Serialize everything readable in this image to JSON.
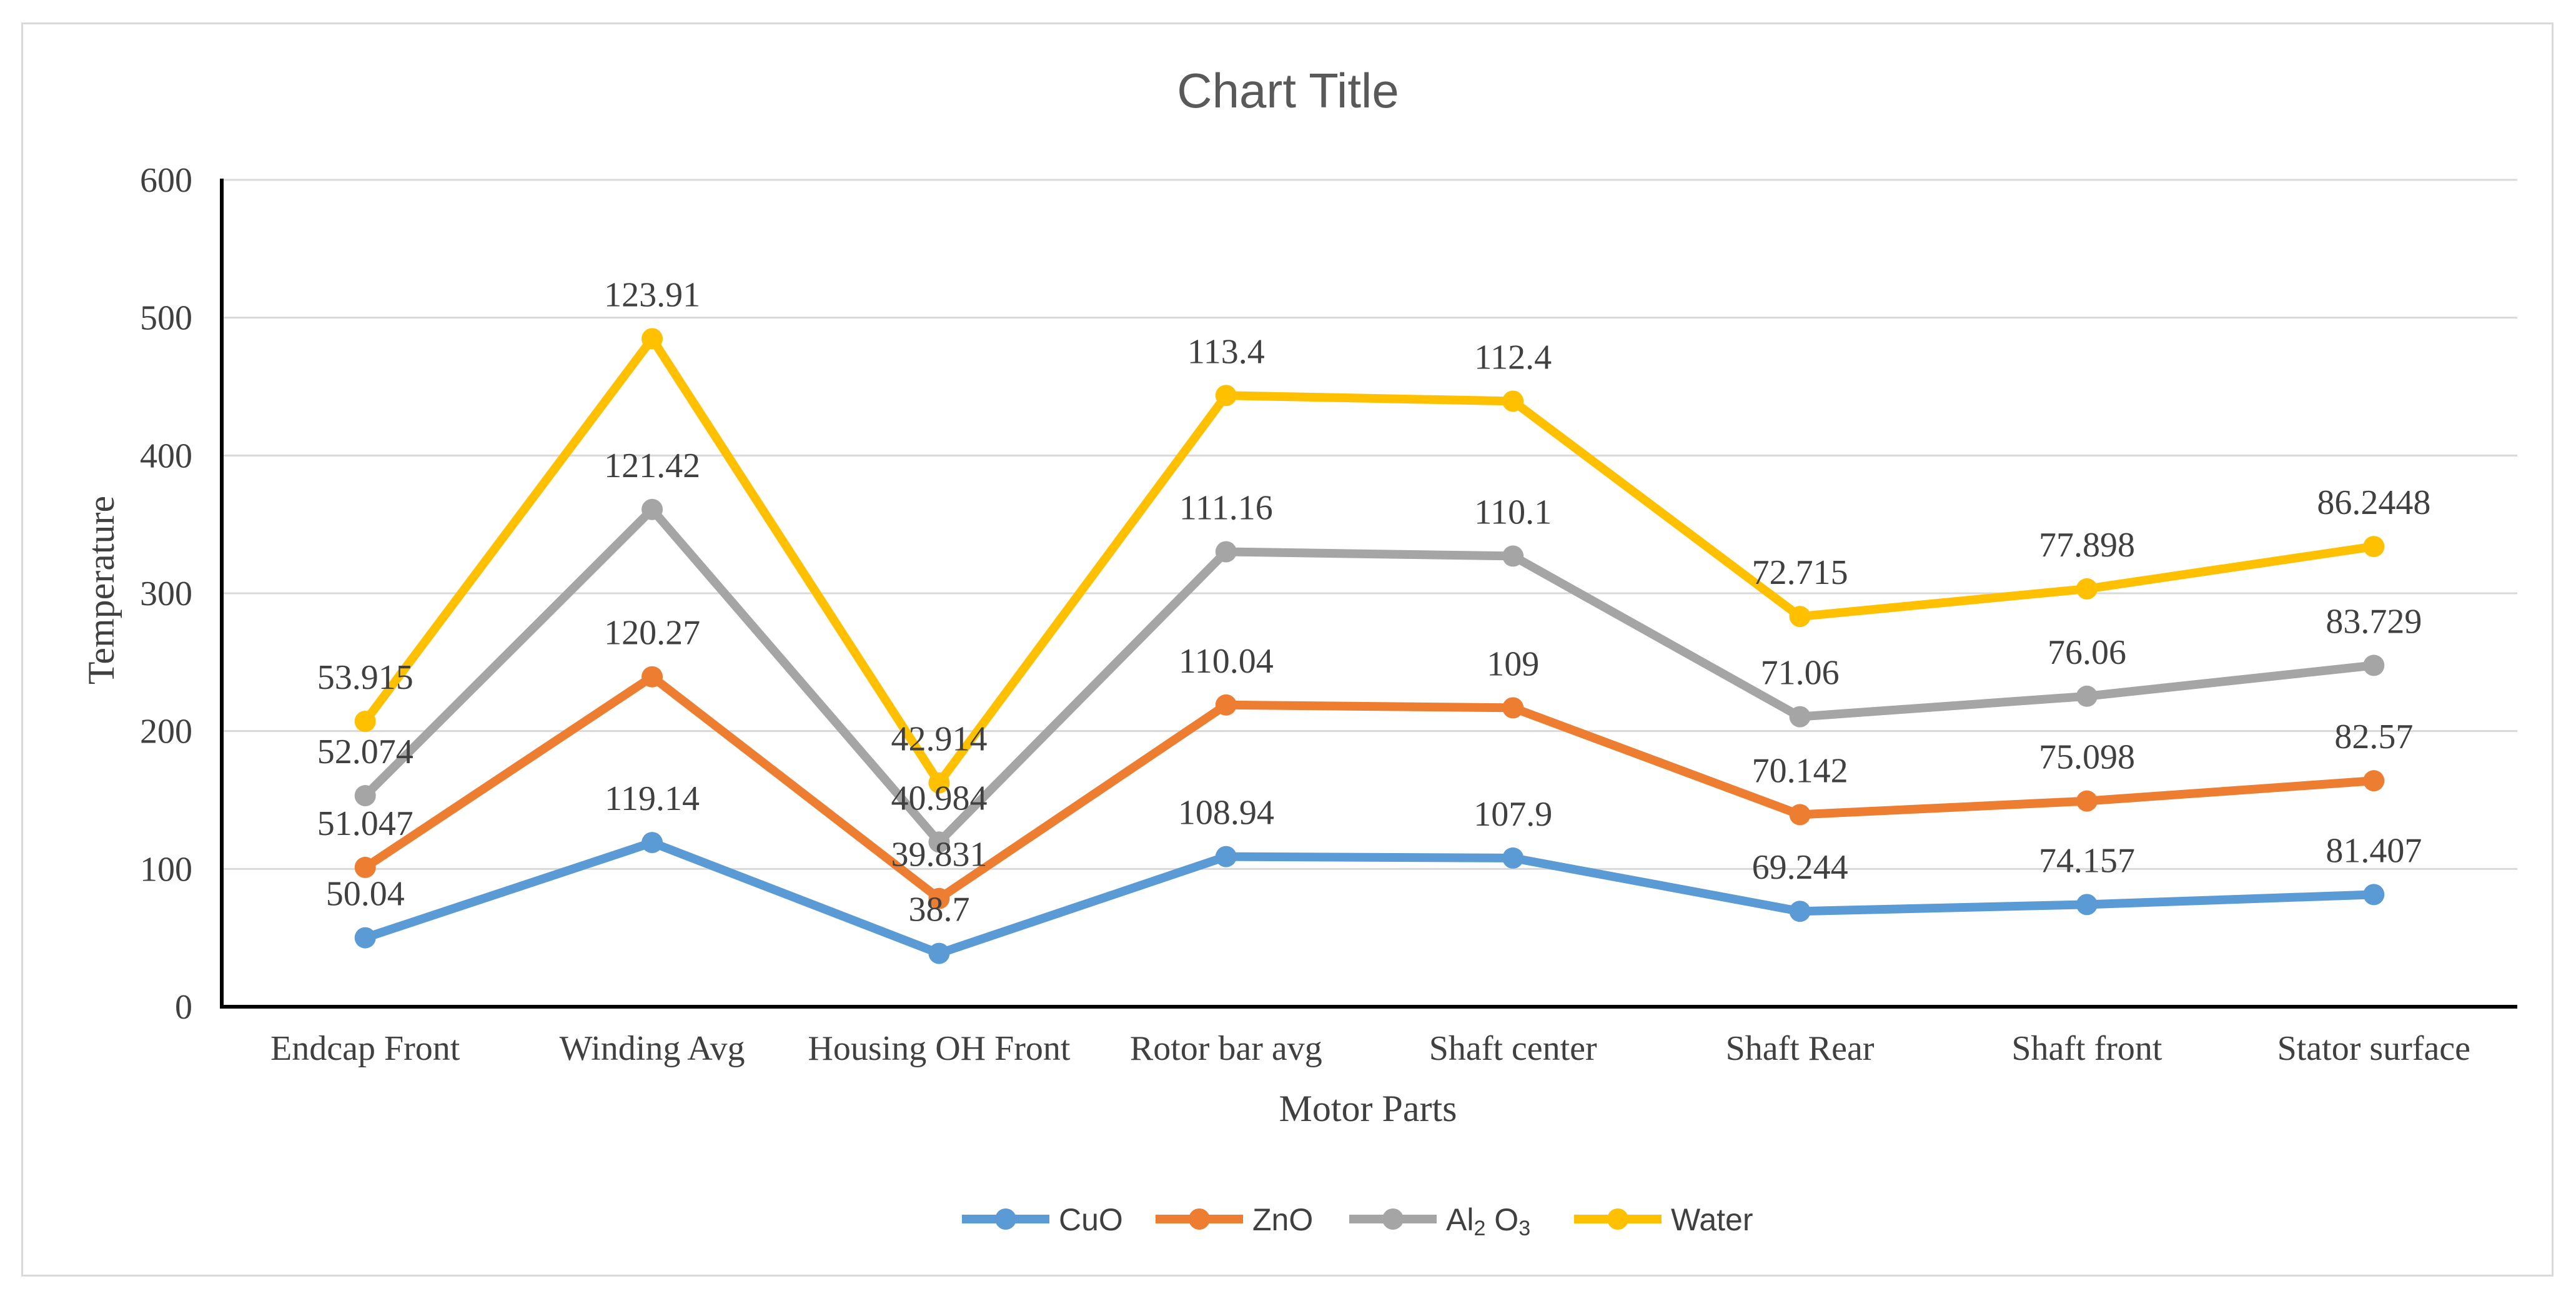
{
  "chart_data": {
    "type": "line",
    "stacked": true,
    "title": "Chart Title",
    "xlabel": "Motor Parts",
    "ylabel": "Temperature",
    "ylim": [
      0,
      600
    ],
    "yticks": [
      0,
      100,
      200,
      300,
      400,
      500,
      600
    ],
    "grid": true,
    "legend_position": "bottom",
    "categories": [
      "Endcap Front",
      "Winding Avg",
      "Housing OH Front",
      "Rotor bar avg",
      "Shaft center",
      "Shaft Rear",
      "Shaft front",
      "Stator surface"
    ],
    "series": [
      {
        "name": "CuO",
        "color": "#5b9bd5",
        "values": [
          50.04,
          119.14,
          38.7,
          108.94,
          107.9,
          69.244,
          74.157,
          81.407
        ],
        "labels": [
          "50.04",
          "119.14",
          "38.7",
          "108.94",
          "107.9",
          "69.244",
          "74.157",
          "81.407"
        ]
      },
      {
        "name": "ZnO",
        "color": "#ed7d31",
        "values": [
          51.047,
          120.27,
          39.831,
          110.04,
          109,
          70.142,
          75.098,
          82.57
        ],
        "labels": [
          "51.047",
          "120.27",
          "39.831",
          "110.04",
          "109",
          "70.142",
          "75.098",
          "82.57"
        ]
      },
      {
        "name": "Al2 O3",
        "legend_main": "Al",
        "legend_sub": "2",
        "legend_rest": " O",
        "legend_sub2": "3",
        "color": "#a5a5a5",
        "values": [
          52.074,
          121.42,
          40.984,
          111.16,
          110.1,
          71.06,
          76.06,
          83.729
        ],
        "labels": [
          "52.074",
          "121.42",
          "40.984",
          "111.16",
          "110.1",
          "71.06",
          "76.06",
          "83.729"
        ]
      },
      {
        "name": "Water",
        "color": "#ffc000",
        "values": [
          53.915,
          123.91,
          42.914,
          113.4,
          112.4,
          72.715,
          77.898,
          86.2448
        ],
        "labels": [
          "53.915",
          "123.91",
          "42.914",
          "113.4",
          "112.4",
          "72.715",
          "77.898",
          "86.2448"
        ]
      }
    ]
  }
}
